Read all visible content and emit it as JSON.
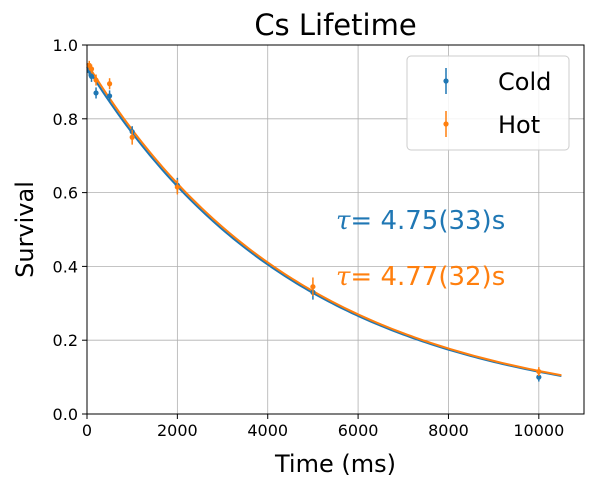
{
  "chart_data": {
    "type": "scatter",
    "title": "Cs Lifetime",
    "xlabel": "Time (ms)",
    "ylabel": "Survival",
    "xlim": [
      0,
      11000
    ],
    "ylim": [
      0.0,
      1.0
    ],
    "xticks": [
      0,
      2000,
      4000,
      6000,
      8000,
      10000
    ],
    "xtick_labels": [
      "0",
      "2000",
      "4000",
      "6000",
      "8000",
      "10000"
    ],
    "yticks": [
      0.0,
      0.2,
      0.4,
      0.6,
      0.8,
      1.0
    ],
    "ytick_labels": [
      "0.0",
      "0.2",
      "0.4",
      "0.6",
      "0.8",
      "1.0"
    ],
    "grid": true,
    "legend_position": "top-right",
    "series": [
      {
        "name": "Cold",
        "color": "#1f77b4",
        "x": [
          50,
          100,
          200,
          500,
          1000,
          2000,
          5000,
          10000
        ],
        "y": [
          0.93,
          0.915,
          0.87,
          0.862,
          0.765,
          0.62,
          0.33,
          0.1
        ],
        "yerr": [
          0.015,
          0.015,
          0.015,
          0.015,
          0.015,
          0.02,
          0.02,
          0.012
        ],
        "fit": {
          "amplitude": 0.94,
          "tau_ms": 4750
        },
        "annotation": {
          "symbol": "τ",
          "text": "= 4.75(33)s"
        }
      },
      {
        "name": "Hot",
        "color": "#ff7f0e",
        "x": [
          50,
          100,
          200,
          500,
          1000,
          2000,
          5000,
          10000
        ],
        "y": [
          0.945,
          0.935,
          0.905,
          0.895,
          0.75,
          0.615,
          0.345,
          0.115
        ],
        "yerr": [
          0.012,
          0.012,
          0.015,
          0.015,
          0.02,
          0.02,
          0.025,
          0.012
        ],
        "fit": {
          "amplitude": 0.95,
          "tau_ms": 4770
        },
        "annotation": {
          "symbol": "τ",
          "text": "= 4.77(32)s"
        }
      }
    ]
  }
}
